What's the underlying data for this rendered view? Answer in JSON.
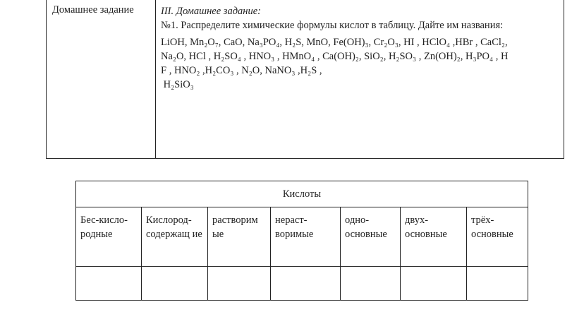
{
  "homework": {
    "label": "Домашнее задание",
    "title": "III. Домашнее задание:",
    "task": "№1. Распределите химические формулы кислот  в таблицу. Дайте им названия:",
    "lines": [
      "LiOH, Mn₂O₇, CaO, Na₃PO₄, H₂S, MnO, Fe(OH)₃, Cr₂O₃, HI , HClO₄ ,HBr , CaCl₂,",
      "Na₂O,  HCl , H₂SO₄ , HNO₃ , HMnO₄ , Ca(OH)₂, SiO₂,  H₂SO₃ , Zn(OH)₂, H₃PO₄ , H",
      "F , HNO₂ ,H₂CO₃ , N₂O, NaNO₃ ,H₂S ,",
      " H₂SiO₃"
    ]
  },
  "acids_table": {
    "title": "Кислоты",
    "columns": [
      "Бес-кисло-родные",
      "Кислород-содержащ ие",
      "растворим ые",
      "нераст-воримые",
      "одно-основные",
      "двух-основные",
      "трёх-основные"
    ]
  }
}
